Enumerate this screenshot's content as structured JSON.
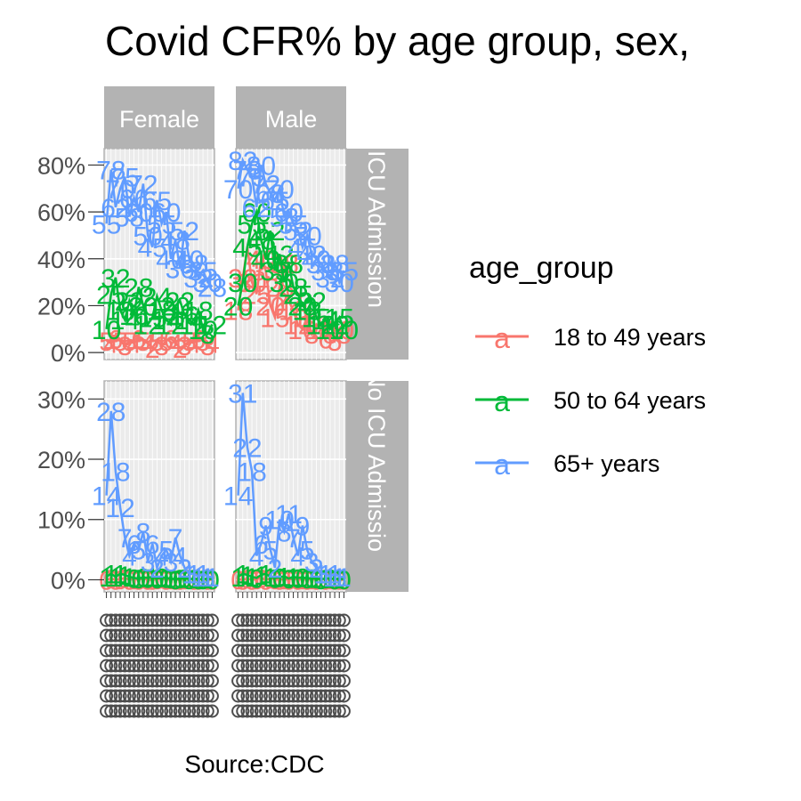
{
  "chart_data": {
    "type": "line",
    "title": "Covid CFR% by age group, sex,",
    "caption": "Source:CDC",
    "xlabel": "",
    "ylabel": "",
    "facets": {
      "columns": [
        "Female",
        "Male"
      ],
      "rows": [
        "ICU Admission",
        "No ICU Admission"
      ],
      "row_strip_text": [
        "ICU Admission",
        "No ICU Admissio"
      ]
    },
    "legend": {
      "title": "age_group",
      "position": "right",
      "key_glyph": "a",
      "entries": [
        {
          "name": "18 to 49 years",
          "color": "#F8766D"
        },
        {
          "name": "50 to 64 years",
          "color": "#00BA38"
        },
        {
          "name": "65+ years",
          "color": "#619CFF"
        }
      ]
    },
    "y_axis_top": {
      "ticks": [
        "0%",
        "20%",
        "40%",
        "60%",
        "80%"
      ],
      "ylim": [
        -3,
        87
      ]
    },
    "y_axis_bottom": {
      "ticks": [
        "0%",
        "10%",
        "20%",
        "30%"
      ],
      "ylim": [
        -2,
        33
      ]
    },
    "grid": true,
    "x_label_overplot_rows": 7,
    "x": [
      1,
      2,
      3,
      4,
      5,
      6,
      7,
      8,
      9,
      10,
      11,
      12,
      13,
      14,
      15,
      16,
      17,
      18,
      19,
      20,
      21,
      22,
      23,
      24
    ],
    "series": [
      {
        "age_group": "18 to 49 years",
        "sex": "Female",
        "icu": "ICU Admission",
        "values": [
          5,
          4,
          6,
          5,
          3,
          5,
          4,
          6,
          5,
          4,
          2,
          5,
          3,
          5,
          6,
          4,
          2,
          3,
          5,
          4,
          6,
          5,
          3,
          4
        ]
      },
      {
        "age_group": "50 to 64 years",
        "sex": "Female",
        "icu": "ICU Admission",
        "values": [
          10,
          25,
          32,
          18,
          14,
          22,
          16,
          28,
          20,
          12,
          15,
          24,
          18,
          14,
          12,
          20,
          22,
          16,
          14,
          12,
          18,
          10,
          8,
          12
        ]
      },
      {
        "age_group": "65+ years",
        "sex": "Female",
        "icu": "ICU Admission",
        "values": [
          55,
          78,
          62,
          70,
          75,
          58,
          66,
          60,
          72,
          50,
          45,
          65,
          55,
          60,
          40,
          48,
          36,
          52,
          40,
          38,
          32,
          35,
          30,
          28
        ]
      },
      {
        "age_group": "18 to 49 years",
        "sex": "Male",
        "icu": "ICU Admission",
        "values": [
          18,
          32,
          45,
          30,
          25,
          40,
          35,
          20,
          15,
          28,
          38,
          22,
          18,
          12,
          10,
          15,
          8,
          12,
          10,
          6,
          8,
          5,
          10,
          8
        ]
      },
      {
        "age_group": "50 to 64 years",
        "sex": "Male",
        "icu": "ICU Admission",
        "values": [
          20,
          30,
          45,
          55,
          60,
          48,
          40,
          52,
          35,
          42,
          30,
          38,
          28,
          25,
          20,
          18,
          22,
          15,
          12,
          14,
          10,
          12,
          15,
          10
        ]
      },
      {
        "age_group": "65+ years",
        "sex": "Male",
        "icu": "ICU Admission",
        "values": [
          70,
          82,
          78,
          75,
          62,
          80,
          72,
          68,
          65,
          70,
          58,
          60,
          55,
          52,
          45,
          50,
          42,
          40,
          38,
          35,
          32,
          38,
          30,
          35
        ]
      },
      {
        "age_group": "18 to 49 years",
        "sex": "Female",
        "icu": "No ICU Admission",
        "values": [
          0,
          0.2,
          0,
          0.1,
          0.3,
          0,
          0.1,
          0,
          0.2,
          0,
          0,
          0.1,
          0.2,
          0,
          0.1,
          0,
          0,
          0.1,
          0.2,
          0,
          0,
          0.1,
          0,
          0
        ]
      },
      {
        "age_group": "50 to 64 years",
        "sex": "Female",
        "icu": "No ICU Admission",
        "values": [
          0.5,
          1,
          0.5,
          1,
          0.8,
          0.5,
          0.3,
          0.2,
          0.4,
          0.3,
          0.5,
          0.2,
          0.4,
          0.3,
          0.2,
          0.1,
          0.2,
          0.3,
          0.1,
          0.2,
          0.1,
          0.1,
          0.2,
          0.1
        ]
      },
      {
        "age_group": "65+ years",
        "sex": "Female",
        "icu": "No ICU Admission",
        "values": [
          14,
          28,
          18,
          12,
          7,
          4,
          6,
          5,
          8,
          3,
          6,
          2,
          4,
          5,
          3,
          7,
          4,
          2,
          1,
          1,
          0.5,
          1,
          0.5,
          0.5
        ]
      },
      {
        "age_group": "18 to 49 years",
        "sex": "Male",
        "icu": "No ICU Admission",
        "values": [
          0.1,
          0,
          0.2,
          0,
          0.1,
          0.3,
          0,
          0.2,
          0.1,
          0,
          0.1,
          0,
          0.2,
          0,
          0.1,
          0,
          0.1,
          0,
          0.2,
          0,
          0.1,
          0,
          0,
          0
        ]
      },
      {
        "age_group": "50 to 64 years",
        "sex": "Male",
        "icu": "No ICU Admission",
        "values": [
          0.5,
          1,
          0.8,
          0.5,
          0.3,
          0.8,
          1,
          0.5,
          0.3,
          0.4,
          0.6,
          0.2,
          0.5,
          0.3,
          0.4,
          0.2,
          0.3,
          0.2,
          0.1,
          0.2,
          0.3,
          0.1,
          0.2,
          0.1
        ]
      },
      {
        "age_group": "65+ years",
        "sex": "Male",
        "icu": "No ICU Admission",
        "values": [
          14,
          31,
          22,
          18,
          4,
          6,
          9,
          5,
          2,
          10,
          8,
          11,
          7,
          4,
          9,
          5,
          3,
          2,
          1,
          1,
          0.5,
          1,
          0.5,
          0.5
        ]
      }
    ]
  }
}
